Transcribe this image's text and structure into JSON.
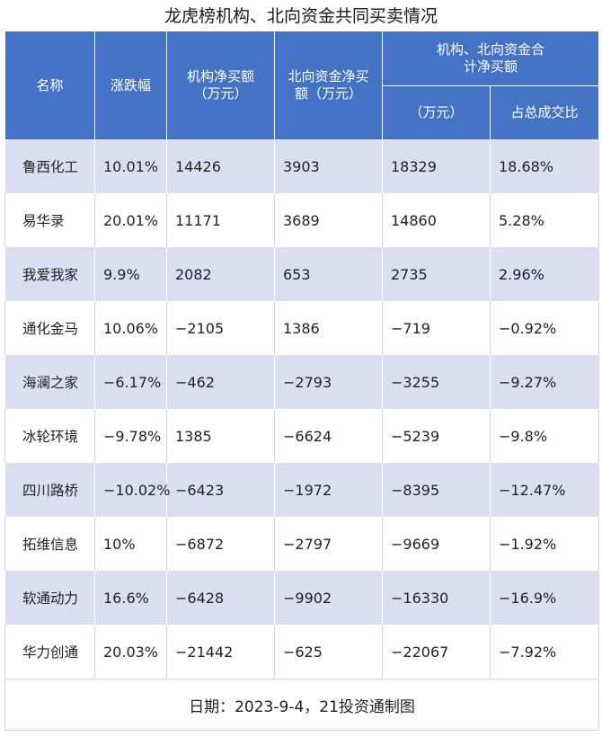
{
  "title": "龙虎榜机构、北向资金共同买卖情况",
  "headers": {
    "name": "名称",
    "change": "涨跌幅",
    "inst_net": "机构净买额（万元）",
    "north_net": "北向资金净买额（万元）",
    "combined_group": "机构、北向资金合计净买额",
    "combined_unit": "（万元）",
    "ratio": "占总成交比"
  },
  "rows": [
    {
      "name": "鲁西化工",
      "change": "10.01%",
      "inst": "14426",
      "north": "3903",
      "total": "18329",
      "ratio": "18.68%"
    },
    {
      "name": "易华录",
      "change": "20.01%",
      "inst": "11171",
      "north": "3689",
      "total": "14860",
      "ratio": "5.28%"
    },
    {
      "name": "我爱我家",
      "change": "9.9%",
      "inst": "2082",
      "north": "653",
      "total": "2735",
      "ratio": "2.96%"
    },
    {
      "name": "通化金马",
      "change": "10.06%",
      "inst": "−2105",
      "north": "1386",
      "total": "−719",
      "ratio": "−0.92%"
    },
    {
      "name": "海澜之家",
      "change": "−6.17%",
      "inst": "−462",
      "north": "−2793",
      "total": "−3255",
      "ratio": "−9.27%"
    },
    {
      "name": "冰轮环境",
      "change": "−9.78%",
      "inst": "1385",
      "north": "−6624",
      "total": "−5239",
      "ratio": "−9.8%"
    },
    {
      "name": "四川路桥",
      "change": "−10.02%",
      "inst": "−6423",
      "north": "−1972",
      "total": "−8395",
      "ratio": "−12.47%"
    },
    {
      "name": "拓维信息",
      "change": "10%",
      "inst": "−6872",
      "north": "−2797",
      "total": "−9669",
      "ratio": "−1.92%"
    },
    {
      "name": "软通动力",
      "change": "16.6%",
      "inst": "−6428",
      "north": "−9902",
      "total": "−16330",
      "ratio": "−16.9%"
    },
    {
      "name": "华力创通",
      "change": "20.03%",
      "inst": "−21442",
      "north": "−625",
      "total": "−22067",
      "ratio": "−7.92%"
    }
  ],
  "footer": "日期：2023-9-4，21投资通制图",
  "colors": {
    "header_bg": "#4472c4",
    "band": "#dae0f2"
  }
}
